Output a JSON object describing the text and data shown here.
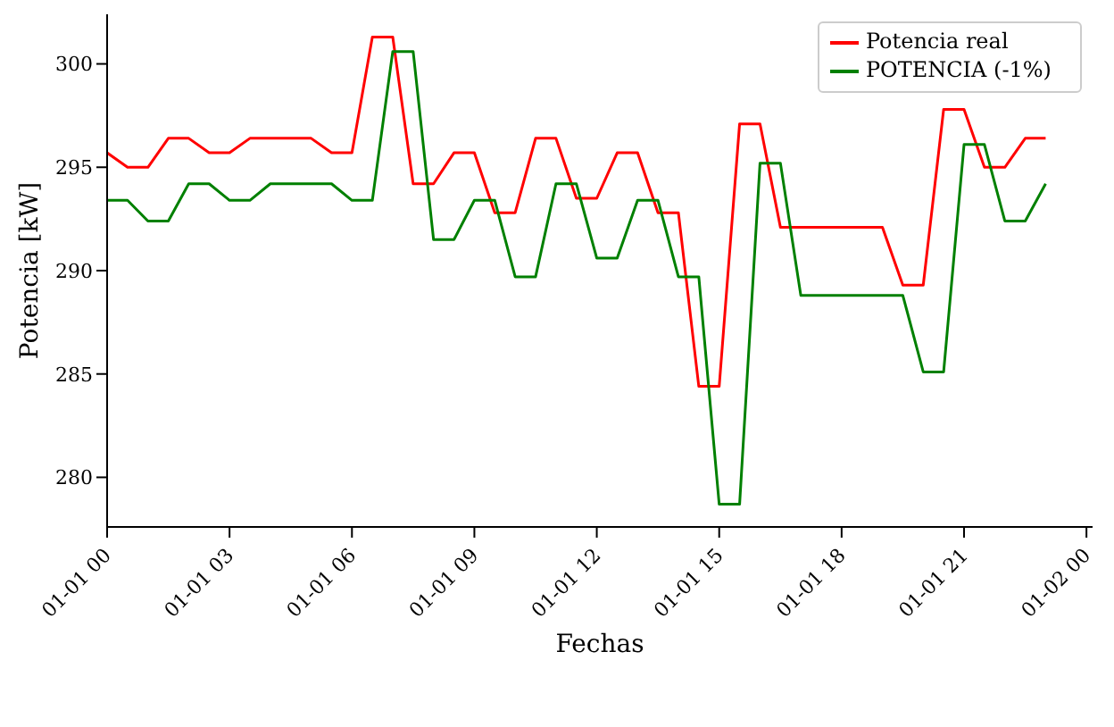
{
  "chart_data": {
    "type": "line",
    "xlabel": "Fechas",
    "ylabel": "Potencia [kW]",
    "x": [
      "--01-01T00:00",
      "--01-01T00:30",
      "--01-01T01:00",
      "--01-01T01:30",
      "--01-01T02:00",
      "--01-01T02:30",
      "--01-01T03:00",
      "--01-01T03:30",
      "--01-01T04:00",
      "--01-01T04:30",
      "--01-01T05:00",
      "--01-01T05:30",
      "--01-01T06:00",
      "--01-01T06:30",
      "--01-01T07:00",
      "--01-01T07:30",
      "--01-01T08:00",
      "--01-01T08:30",
      "--01-01T09:00",
      "--01-01T09:30",
      "--01-01T10:00",
      "--01-01T10:30",
      "--01-01T11:00",
      "--01-01T11:30",
      "--01-01T12:00",
      "--01-01T12:30",
      "--01-01T13:00",
      "--01-01T13:30",
      "--01-01T14:00",
      "--01-01T14:30",
      "--01-01T15:00",
      "--01-01T15:30",
      "--01-01T16:00",
      "--01-01T16:30",
      "--01-01T17:00",
      "--01-01T17:30",
      "--01-01T18:00",
      "--01-01T18:30",
      "--01-01T19:00",
      "--01-01T19:30",
      "--01-01T20:00",
      "--01-01T20:30",
      "--01-01T21:00",
      "--01-01T21:30",
      "--01-01T22:00",
      "--01-01T22:30",
      "--01-01T23:00"
    ],
    "series": [
      {
        "name": "Potencia real",
        "color": "#ff0000",
        "values": [
          295.7,
          295.0,
          295.0,
          296.4,
          296.4,
          295.7,
          295.7,
          296.4,
          296.4,
          296.4,
          296.4,
          295.7,
          295.7,
          301.3,
          301.3,
          294.2,
          294.2,
          295.7,
          295.7,
          292.8,
          292.8,
          296.4,
          296.4,
          293.5,
          293.5,
          295.7,
          295.7,
          292.8,
          292.8,
          284.4,
          284.4,
          297.1,
          297.1,
          292.1,
          292.1,
          292.1,
          292.1,
          292.1,
          292.1,
          289.3,
          289.3,
          297.8,
          297.8,
          295.0,
          295.0,
          296.4,
          296.4
        ]
      },
      {
        "name": "POTENCIA (-1%)",
        "color": "#008000",
        "values": [
          293.4,
          293.4,
          292.4,
          292.4,
          294.2,
          294.2,
          293.4,
          293.4,
          294.2,
          294.2,
          294.2,
          294.2,
          293.4,
          293.4,
          300.6,
          300.6,
          291.5,
          291.5,
          293.4,
          293.4,
          289.7,
          289.7,
          294.2,
          294.2,
          290.6,
          290.6,
          293.4,
          293.4,
          289.7,
          289.7,
          278.7,
          278.7,
          295.2,
          295.2,
          288.8,
          288.8,
          288.8,
          288.8,
          288.8,
          288.8,
          285.1,
          285.1,
          296.1,
          296.1,
          292.4,
          292.4,
          294.2
        ]
      }
    ],
    "xticks": [
      {
        "value": "--01-01T00:00",
        "label": "01-01 00"
      },
      {
        "value": "--01-01T03:00",
        "label": "01-01 03"
      },
      {
        "value": "--01-01T06:00",
        "label": "01-01 06"
      },
      {
        "value": "--01-01T09:00",
        "label": "01-01 09"
      },
      {
        "value": "--01-01T12:00",
        "label": "01-01 12"
      },
      {
        "value": "--01-01T15:00",
        "label": "01-01 15"
      },
      {
        "value": "--01-01T18:00",
        "label": "01-01 18"
      },
      {
        "value": "--01-01T21:00",
        "label": "01-01 21"
      },
      {
        "value": "--01-02T00:00",
        "label": "01-02 00"
      }
    ],
    "xlim": [
      "--01-01T00:00",
      "--01-02T00:09"
    ],
    "ylim": [
      277.6,
      302.4
    ],
    "yticks": [
      280,
      285,
      290,
      295,
      300
    ],
    "legend": "top right",
    "grid": false,
    "marker": "none",
    "line_style": "solid"
  }
}
